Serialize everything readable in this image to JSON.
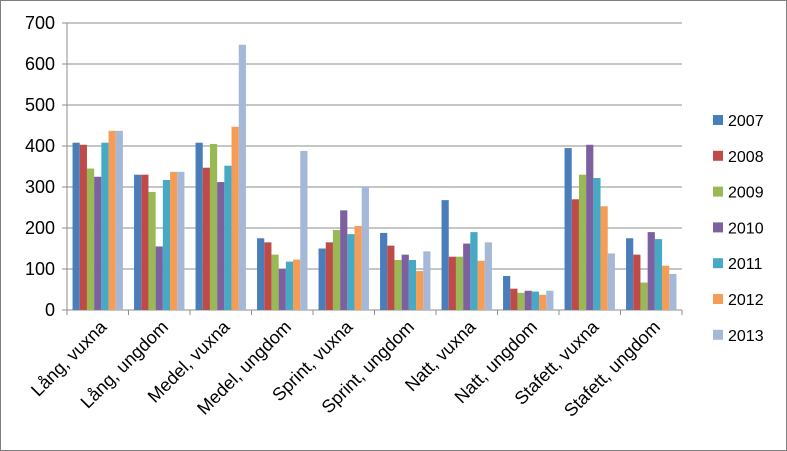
{
  "chart_data": {
    "type": "bar",
    "categories": [
      "Lång, vuxna",
      "Lång, ungdom",
      "Medel, vuxna",
      "Medel, ungdom",
      "Sprint, vuxna",
      "Sprint, ungdom",
      "Natt, vuxna",
      "Natt, ungdom",
      "Stafett, vuxna",
      "Stafett, ungdom"
    ],
    "series": [
      {
        "name": "2007",
        "color": "#4a7ebb",
        "values": [
          408,
          330,
          408,
          175,
          150,
          188,
          268,
          83,
          395,
          175
        ]
      },
      {
        "name": "2008",
        "color": "#be4b48",
        "values": [
          403,
          330,
          347,
          165,
          165,
          157,
          130,
          52,
          270,
          135
        ]
      },
      {
        "name": "2009",
        "color": "#98b954",
        "values": [
          345,
          288,
          405,
          135,
          195,
          122,
          130,
          42,
          330,
          67
        ]
      },
      {
        "name": "2010",
        "color": "#7d60a0",
        "values": [
          325,
          155,
          312,
          100,
          243,
          135,
          162,
          47,
          403,
          190
        ]
      },
      {
        "name": "2011",
        "color": "#46aac5",
        "values": [
          408,
          317,
          352,
          118,
          185,
          122,
          190,
          45,
          322,
          173
        ]
      },
      {
        "name": "2012",
        "color": "#f59d56",
        "values": [
          437,
          337,
          447,
          123,
          205,
          95,
          120,
          37,
          253,
          108
        ]
      },
      {
        "name": "2013",
        "color": "#a5b8d8",
        "values": [
          437,
          337,
          647,
          388,
          302,
          143,
          165,
          47,
          138,
          88
        ]
      }
    ],
    "yticks": [
      "0",
      "100",
      "200",
      "300",
      "400",
      "500",
      "600",
      "700"
    ],
    "ylim": [
      0,
      700
    ],
    "grid": true,
    "legend_position": "right",
    "title": "",
    "xlabel": "",
    "ylabel": ""
  }
}
